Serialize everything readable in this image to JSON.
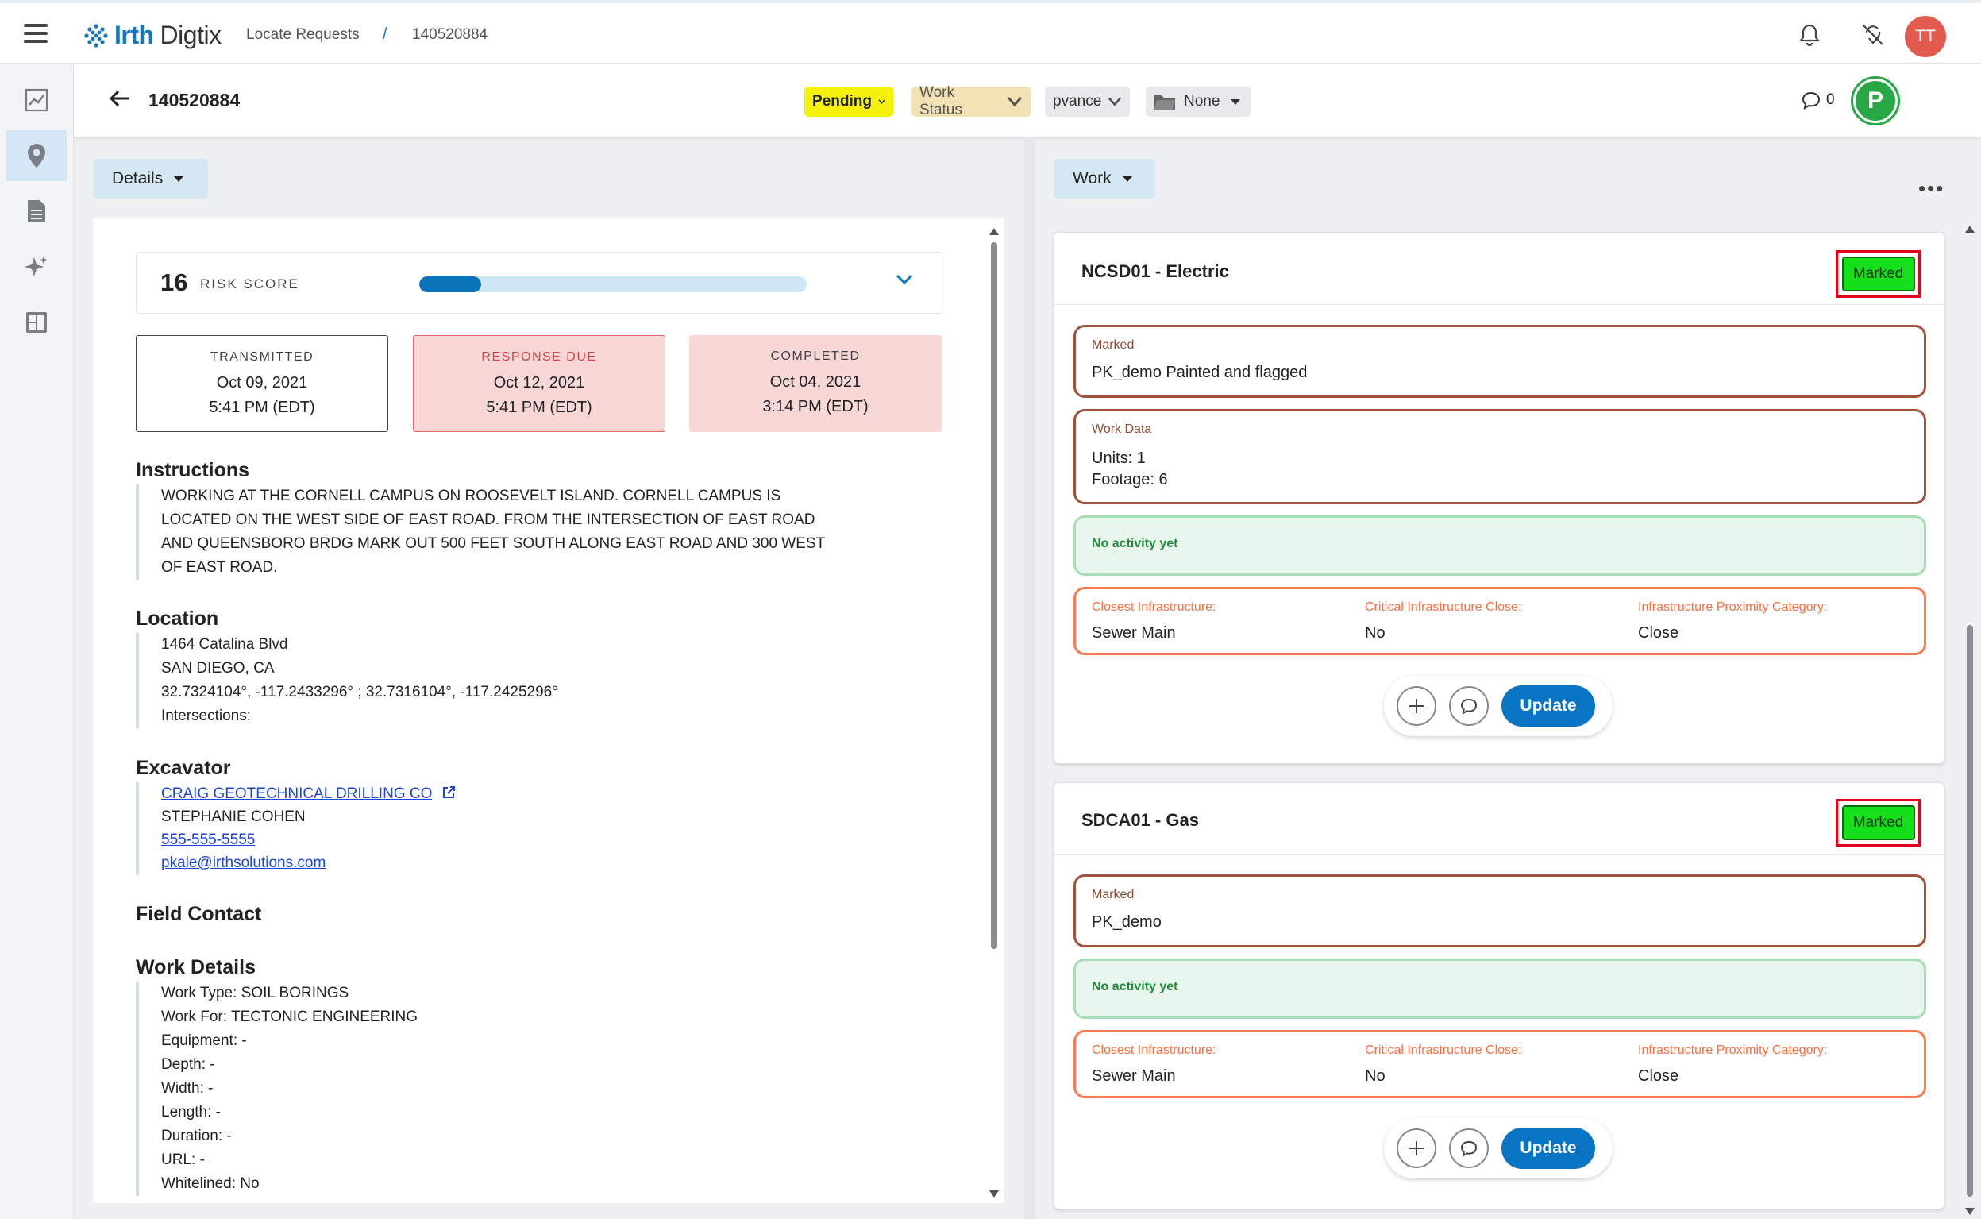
{
  "app": {
    "brand_part1": "Irth",
    "brand_part2": "Digtix"
  },
  "breadcrumb": {
    "item1": "Locate Requests",
    "separator": "/",
    "item2": "140520884"
  },
  "user": {
    "initials": "TT"
  },
  "subheader": {
    "ticket_id": "140520884",
    "status": "Pending",
    "work_status": "Work Status",
    "assignee": "pvance",
    "folder": "None",
    "comment_count": "0",
    "p_badge": "P"
  },
  "details": {
    "dropdown_label": "Details",
    "risk": {
      "score": "16",
      "label": "RISK SCORE",
      "fraction": 0.16
    },
    "dates": [
      {
        "label": "TRANSMITTED",
        "date": "Oct 09, 2021",
        "time": "5:41 PM (EDT)"
      },
      {
        "label": "RESPONSE DUE",
        "date": "Oct 12, 2021",
        "time": "5:41 PM (EDT)"
      },
      {
        "label": "COMPLETED",
        "date": "Oct 04, 2021",
        "time": "3:14 PM (EDT)"
      }
    ],
    "instructions": {
      "title": "Instructions",
      "lines": [
        "WORKING AT THE CORNELL CAMPUS ON ROOSEVELT ISLAND. CORNELL CAMPUS IS",
        "LOCATED ON THE WEST SIDE OF EAST ROAD. FROM THE INTERSECTION OF EAST ROAD",
        "AND QUEENSBORO BRDG MARK OUT 500 FEET SOUTH ALONG EAST ROAD AND 300 WEST",
        "OF EAST ROAD."
      ]
    },
    "location": {
      "title": "Location",
      "address": "1464 Catalina Blvd",
      "city": "SAN DIEGO, CA",
      "coords": "32.7324104°, -117.2433296° ; 32.7316104°, -117.2425296°",
      "intersections": "Intersections:"
    },
    "excavator": {
      "title": "Excavator",
      "company": "CRAIG GEOTECHNICAL DRILLING CO",
      "contact": "STEPHANIE COHEN",
      "phone": "555-555-5555",
      "email": "pkale@irthsolutions.com"
    },
    "field_contact": {
      "title": "Field Contact"
    },
    "work_details": {
      "title": "Work Details",
      "lines": [
        "Work Type: SOIL BORINGS",
        "Work For: TECTONIC ENGINEERING",
        "Equipment: -",
        "Depth: -",
        "Width: -",
        "Length: -",
        "Duration: -",
        "URL: -",
        "Whitelined: No"
      ]
    }
  },
  "work": {
    "dropdown_label": "Work",
    "cards": [
      {
        "title": "NCSD01 - Electric",
        "status": "Marked",
        "marked_caption": "Marked",
        "marked_value": "PK_demo Painted and flagged",
        "work_data_caption": "Work Data",
        "work_data_units": "Units: 1",
        "work_data_footage": "Footage: 6",
        "activity": "No activity yet",
        "infra": [
          {
            "label": "Closest Infrastructure:",
            "value": "Sewer Main"
          },
          {
            "label": "Critical Infrastructure Close:",
            "value": "No"
          },
          {
            "label": "Infrastructure Proximity Category:",
            "value": "Close"
          }
        ],
        "update_label": "Update"
      },
      {
        "title": "SDCA01 - Gas",
        "status": "Marked",
        "marked_caption": "Marked",
        "marked_value": "PK_demo",
        "activity": "No activity yet",
        "infra": [
          {
            "label": "Closest Infrastructure:",
            "value": "Sewer Main"
          },
          {
            "label": "Critical Infrastructure Close:",
            "value": "No"
          },
          {
            "label": "Infrastructure Proximity Category:",
            "value": "Close"
          }
        ],
        "update_label": "Update"
      }
    ]
  },
  "colors": {
    "brand_blue": "#1277be",
    "pending_yellow": "#f6f10a",
    "marked_green": "#16e01a",
    "highlight_red": "#e3001b",
    "response_due_red": "#d94444"
  }
}
